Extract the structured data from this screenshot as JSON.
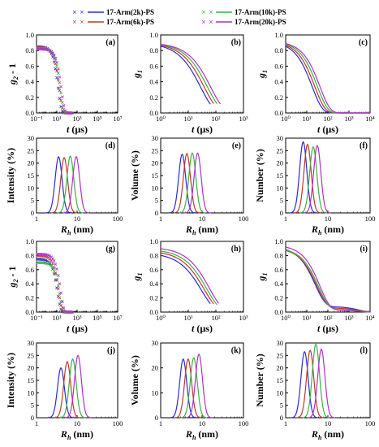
{
  "legend": {
    "entries": [
      "17-Arm(2k)-PS",
      "17-Arm(6k)-PS",
      "17-Arm(10k)-PS",
      "17-Arm(20k)-PS"
    ],
    "marker": "×"
  },
  "colors": [
    "#2b2bd0",
    "#c0392b",
    "#3cb043",
    "#b030c8"
  ],
  "x_tick_labels": {
    "t_log": [
      "10⁻¹",
      "10¹",
      "10³",
      "10⁵",
      "10⁷"
    ],
    "t_short": [
      "10⁰",
      "10¹",
      "10²",
      "10³"
    ],
    "t_long": [
      "10⁰",
      "10¹",
      "10²",
      "10³",
      "10⁴"
    ],
    "rh": [
      "1",
      "10",
      "100"
    ]
  },
  "chart_data": [
    {
      "panel": "(a)",
      "type": "scatter",
      "xlabel": "t (µs)",
      "ylabel": "g₂ - 1",
      "x_scale": "log",
      "xlim": [
        0.1,
        10000000
      ],
      "ylim": [
        0,
        1.0
      ],
      "yticks": [
        "0.0",
        "0.2",
        "0.4",
        "0.6",
        "0.8",
        "1.0"
      ],
      "series": [
        {
          "name": "17-Arm(2k)-PS",
          "amplitude": 0.85,
          "decay_time_us": 14
        },
        {
          "name": "17-Arm(6k)-PS",
          "amplitude": 0.84,
          "decay_time_us": 18
        },
        {
          "name": "17-Arm(10k)-PS",
          "amplitude": 0.83,
          "decay_time_us": 23
        },
        {
          "name": "17-Arm(20k)-PS",
          "amplitude": 0.82,
          "decay_time_us": 28
        }
      ]
    },
    {
      "panel": "(b)",
      "type": "line",
      "xlabel": "t (µs)",
      "ylabel": "g₁",
      "x_scale": "log",
      "xlim": [
        1,
        1000
      ],
      "ylim": [
        0,
        1.0
      ],
      "yticks": [
        "0.0",
        "0.2",
        "0.4",
        "0.6",
        "0.8",
        "1.0"
      ],
      "series": [
        {
          "name": "17-Arm(2k)-PS",
          "amplitude": 0.9,
          "decay_time_us": 28
        },
        {
          "name": "17-Arm(6k)-PS",
          "amplitude": 0.9,
          "decay_time_us": 38
        },
        {
          "name": "17-Arm(10k)-PS",
          "amplitude": 0.9,
          "decay_time_us": 50
        },
        {
          "name": "17-Arm(20k)-PS",
          "amplitude": 0.9,
          "decay_time_us": 65
        }
      ]
    },
    {
      "panel": "(c)",
      "type": "line",
      "xlabel": "t (µs)",
      "ylabel": "g₁",
      "x_scale": "log",
      "xlim": [
        1,
        10000
      ],
      "ylim": [
        0,
        1.0
      ],
      "yticks": [
        "0.0",
        "0.2",
        "0.4",
        "0.6",
        "0.8",
        "1.0"
      ],
      "series": [
        {
          "name": "17-Arm(2k)-PS",
          "amplitude": 0.92,
          "decay_time_us": 18
        },
        {
          "name": "17-Arm(6k)-PS",
          "amplitude": 0.92,
          "decay_time_us": 24
        },
        {
          "name": "17-Arm(10k)-PS",
          "amplitude": 0.92,
          "decay_time_us": 32
        },
        {
          "name": "17-Arm(20k)-PS",
          "amplitude": 0.92,
          "decay_time_us": 42
        }
      ]
    },
    {
      "panel": "(d)",
      "type": "line",
      "xlabel": "Rh (nm)",
      "ylabel": "Intensity (%)",
      "x_scale": "log",
      "xlim": [
        1,
        100
      ],
      "ylim": [
        0,
        30
      ],
      "yticks": [
        "0",
        "5",
        "10",
        "15",
        "20",
        "25",
        "30"
      ],
      "series": [
        {
          "name": "17-Arm(2k)-PS",
          "peak_rh_nm": 3.5,
          "peak_pct": 22.5
        },
        {
          "name": "17-Arm(6k)-PS",
          "peak_rh_nm": 4.8,
          "peak_pct": 22.2
        },
        {
          "name": "17-Arm(10k)-PS",
          "peak_rh_nm": 6.8,
          "peak_pct": 22.8
        },
        {
          "name": "17-Arm(20k)-PS",
          "peak_rh_nm": 9.5,
          "peak_pct": 22.6
        }
      ]
    },
    {
      "panel": "(e)",
      "type": "line",
      "xlabel": "Rh (nm)",
      "ylabel": "Volume (%)",
      "x_scale": "log",
      "xlim": [
        1,
        100
      ],
      "ylim": [
        0,
        30
      ],
      "yticks": [
        "0",
        "5",
        "10",
        "15",
        "20",
        "25",
        "30"
      ],
      "series": [
        {
          "name": "17-Arm(2k)-PS",
          "peak_rh_nm": 3.3,
          "peak_pct": 23.5
        },
        {
          "name": "17-Arm(6k)-PS",
          "peak_rh_nm": 4.3,
          "peak_pct": 23.8
        },
        {
          "name": "17-Arm(10k)-PS",
          "peak_rh_nm": 5.8,
          "peak_pct": 24.0
        },
        {
          "name": "17-Arm(20k)-PS",
          "peak_rh_nm": 7.8,
          "peak_pct": 24.0
        }
      ]
    },
    {
      "panel": "(f)",
      "type": "line",
      "xlabel": "Rh (nm)",
      "ylabel": "Number (%)",
      "x_scale": "log",
      "xlim": [
        1,
        100
      ],
      "ylim": [
        0,
        30
      ],
      "yticks": [
        "0",
        "5",
        "10",
        "15",
        "20",
        "25",
        "30"
      ],
      "series": [
        {
          "name": "17-Arm(2k)-PS",
          "peak_rh_nm": 2.6,
          "peak_pct": 28.5
        },
        {
          "name": "17-Arm(6k)-PS",
          "peak_rh_nm": 3.3,
          "peak_pct": 27.5
        },
        {
          "name": "17-Arm(10k)-PS",
          "peak_rh_nm": 4.5,
          "peak_pct": 26.5
        },
        {
          "name": "17-Arm(20k)-PS",
          "peak_rh_nm": 5.6,
          "peak_pct": 27.0
        }
      ]
    },
    {
      "panel": "(g)",
      "type": "scatter",
      "xlabel": "t (µs)",
      "ylabel": "g₂ - 1",
      "x_scale": "log",
      "xlim": [
        0.1,
        10000000
      ],
      "ylim": [
        0,
        1.0
      ],
      "yticks": [
        "0.0",
        "0.2",
        "0.4",
        "0.6",
        "0.8",
        "1.0"
      ],
      "series": [
        {
          "name": "17-Arm(2k)-PS",
          "amplitude": 0.75,
          "decay_time_us": 12
        },
        {
          "name": "17-Arm(6k)-PS",
          "amplitude": 0.8,
          "decay_time_us": 15
        },
        {
          "name": "17-Arm(10k)-PS",
          "amplitude": 0.7,
          "decay_time_us": 19
        },
        {
          "name": "17-Arm(20k)-PS",
          "amplitude": 0.82,
          "decay_time_us": 24
        }
      ]
    },
    {
      "panel": "(h)",
      "type": "line",
      "xlabel": "t (µs)",
      "ylabel": "g₁",
      "x_scale": "log",
      "xlim": [
        1,
        1000
      ],
      "ylim": [
        0,
        1.0
      ],
      "yticks": [
        "0.0",
        "0.2",
        "0.4",
        "0.6",
        "0.8",
        "1.0"
      ],
      "series": [
        {
          "name": "17-Arm(2k)-PS",
          "amplitude": 0.84,
          "decay_time_us": 30
        },
        {
          "name": "17-Arm(6k)-PS",
          "amplitude": 0.87,
          "decay_time_us": 38
        },
        {
          "name": "17-Arm(10k)-PS",
          "amplitude": 0.89,
          "decay_time_us": 47
        },
        {
          "name": "17-Arm(20k)-PS",
          "amplitude": 0.92,
          "decay_time_us": 58
        }
      ]
    },
    {
      "panel": "(i)",
      "type": "line",
      "xlabel": "t (µs)",
      "ylabel": "g₁",
      "x_scale": "log",
      "xlim": [
        1,
        10000
      ],
      "ylim": [
        0,
        1.0
      ],
      "yticks": [
        "0.0",
        "0.2",
        "0.4",
        "0.6",
        "0.8",
        "1.0"
      ],
      "series": [
        {
          "name": "17-Arm(2k)-PS",
          "amplitude": 0.85,
          "decay_time_us": 25,
          "tail": 0.08
        },
        {
          "name": "17-Arm(6k)-PS",
          "amplitude": 0.85,
          "decay_time_us": 30,
          "tail": 0.06
        },
        {
          "name": "17-Arm(10k)-PS",
          "amplitude": 0.87,
          "decay_time_us": 36,
          "tail": 0.04
        },
        {
          "name": "17-Arm(20k)-PS",
          "amplitude": 0.92,
          "decay_time_us": 42,
          "tail": 0.03
        }
      ]
    },
    {
      "panel": "(j)",
      "type": "line",
      "xlabel": "Rh (nm)",
      "ylabel": "Intensity (%)",
      "x_scale": "log",
      "xlim": [
        1,
        100
      ],
      "ylim": [
        0,
        30
      ],
      "yticks": [
        "0",
        "5",
        "10",
        "15",
        "20",
        "25",
        "30"
      ],
      "series": [
        {
          "name": "17-Arm(2k)-PS",
          "peak_rh_nm": 4.0,
          "peak_pct": 20.0
        },
        {
          "name": "17-Arm(6k)-PS",
          "peak_rh_nm": 5.7,
          "peak_pct": 22.5
        },
        {
          "name": "17-Arm(10k)-PS",
          "peak_rh_nm": 7.8,
          "peak_pct": 23.5
        },
        {
          "name": "17-Arm(20k)-PS",
          "peak_rh_nm": 10.5,
          "peak_pct": 25.0
        }
      ]
    },
    {
      "panel": "(k)",
      "type": "line",
      "xlabel": "Rh (nm)",
      "ylabel": "Volume (%)",
      "x_scale": "log",
      "xlim": [
        1,
        100
      ],
      "ylim": [
        0,
        30
      ],
      "yticks": [
        "0",
        "10",
        "20",
        "30"
      ],
      "series": [
        {
          "name": "17-Arm(2k)-PS",
          "peak_rh_nm": 3.5,
          "peak_pct": 23.5
        },
        {
          "name": "17-Arm(6k)-PS",
          "peak_rh_nm": 4.6,
          "peak_pct": 23.5
        },
        {
          "name": "17-Arm(10k)-PS",
          "peak_rh_nm": 6.3,
          "peak_pct": 24.0
        },
        {
          "name": "17-Arm(20k)-PS",
          "peak_rh_nm": 8.4,
          "peak_pct": 25.5
        }
      ]
    },
    {
      "panel": "(l)",
      "type": "line",
      "xlabel": "Rh (nm)",
      "ylabel": "Number (%)",
      "x_scale": "log",
      "xlim": [
        1,
        100
      ],
      "ylim": [
        0,
        30
      ],
      "yticks": [
        "0",
        "5",
        "10",
        "15",
        "20",
        "25",
        "30"
      ],
      "series": [
        {
          "name": "17-Arm(2k)-PS",
          "peak_rh_nm": 2.8,
          "peak_pct": 26.5
        },
        {
          "name": "17-Arm(6k)-PS",
          "peak_rh_nm": 3.8,
          "peak_pct": 27.0
        },
        {
          "name": "17-Arm(10k)-PS",
          "peak_rh_nm": 5.2,
          "peak_pct": 29.5
        },
        {
          "name": "17-Arm(20k)-PS",
          "peak_rh_nm": 7.0,
          "peak_pct": 27.5
        }
      ]
    }
  ]
}
